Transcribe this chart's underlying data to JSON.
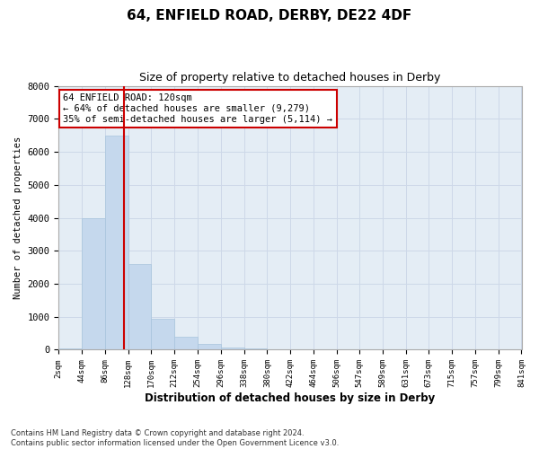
{
  "title": "64, ENFIELD ROAD, DERBY, DE22 4DF",
  "subtitle": "Size of property relative to detached houses in Derby",
  "xlabel": "Distribution of detached houses by size in Derby",
  "ylabel": "Number of detached properties",
  "bar_color": "#c5d8ed",
  "bar_edge_color": "#a8c4dc",
  "grid_color": "#cdd8e8",
  "background_color": "#e4edf5",
  "vline_color": "#cc0000",
  "vline_x": 120,
  "annotation_line1": "64 ENFIELD ROAD: 120sqm",
  "annotation_line2": "← 64% of detached houses are smaller (9,279)",
  "annotation_line3": "35% of semi-detached houses are larger (5,114) →",
  "annotation_box_color": "#ffffff",
  "annotation_box_edge": "#cc0000",
  "footer": "Contains HM Land Registry data © Crown copyright and database right 2024.\nContains public sector information licensed under the Open Government Licence v3.0.",
  "bin_edges": [
    2,
    44,
    86,
    128,
    170,
    212,
    254,
    296,
    338,
    380,
    422,
    464,
    506,
    547,
    589,
    631,
    673,
    715,
    757,
    799,
    841
  ],
  "bar_heights": [
    30,
    3980,
    6490,
    2600,
    940,
    390,
    170,
    60,
    30,
    0,
    0,
    0,
    0,
    0,
    0,
    0,
    0,
    0,
    0,
    0
  ],
  "ylim": [
    0,
    8000
  ],
  "yticks": [
    0,
    1000,
    2000,
    3000,
    4000,
    5000,
    6000,
    7000,
    8000
  ],
  "figsize": [
    6.0,
    5.0
  ],
  "dpi": 100
}
